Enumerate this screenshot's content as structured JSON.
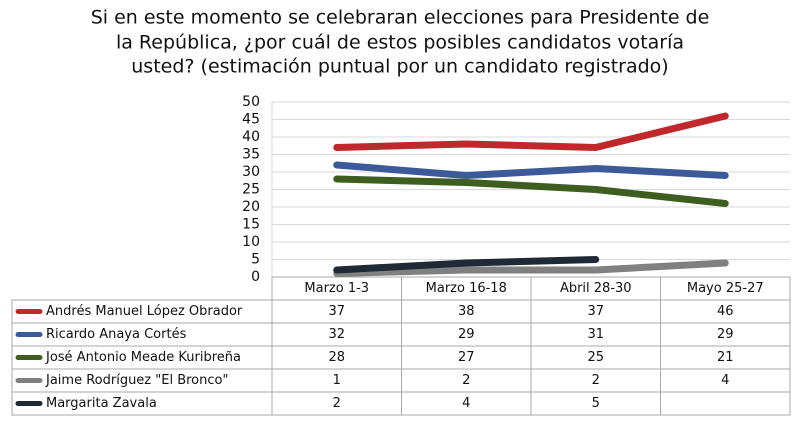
{
  "chart_data": {
    "type": "line",
    "title": [
      "Si en este momento se celebraran elecciones para Presidente de",
      "la República, ¿por cuál de estos posibles candidatos votaría",
      "usted? (estimación puntual por un candidato registrado)"
    ],
    "categories": [
      "Marzo 1-3",
      "Marzo 16-18",
      "Abril 28-30",
      "Mayo 25-27"
    ],
    "series": [
      {
        "name": "Andrés Manuel López Obrador",
        "color": "#c0282b",
        "values": [
          37,
          38,
          37,
          46
        ]
      },
      {
        "name": "Ricardo Anaya Cortés",
        "color": "#3c5a9a",
        "values": [
          32,
          29,
          31,
          29
        ]
      },
      {
        "name": "José Antonio Meade Kuribreña",
        "color": "#3d5e1f",
        "values": [
          28,
          27,
          25,
          21
        ]
      },
      {
        "name": "Jaime Rodríguez \"El Bronco\"",
        "color": "#808080",
        "values": [
          1,
          2,
          2,
          4
        ]
      },
      {
        "name": "Margarita Zavala",
        "color": "#1f2a36",
        "values": [
          2,
          4,
          5,
          null
        ]
      }
    ],
    "ylim": [
      0,
      50
    ],
    "yticks": [
      0,
      5,
      10,
      15,
      20,
      25,
      30,
      35,
      40,
      45,
      50
    ],
    "grid": true
  }
}
